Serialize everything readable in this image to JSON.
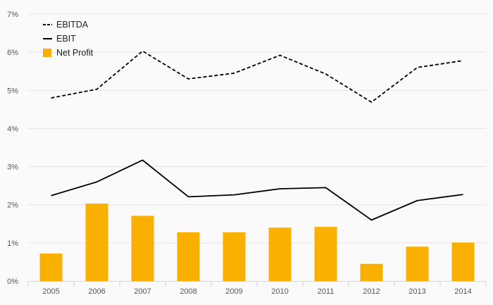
{
  "chart_data": {
    "type": "bar",
    "categories": [
      "2005",
      "2006",
      "2007",
      "2008",
      "2009",
      "2010",
      "2011",
      "2012",
      "2013",
      "2014"
    ],
    "series": [
      {
        "name": "EBITDA",
        "kind": "line",
        "style": "dashed",
        "color": "#000000",
        "values": [
          4.8,
          5.03,
          6.03,
          5.3,
          5.45,
          5.92,
          5.43,
          4.69,
          5.6,
          5.78
        ]
      },
      {
        "name": "EBIT",
        "kind": "line",
        "style": "solid",
        "color": "#000000",
        "values": [
          2.24,
          2.6,
          3.17,
          2.21,
          2.26,
          2.42,
          2.45,
          1.6,
          2.11,
          2.27
        ]
      },
      {
        "name": "Net Profit",
        "kind": "bar",
        "color": "#f9b000",
        "values": [
          0.72,
          2.03,
          1.71,
          1.28,
          1.28,
          1.4,
          1.42,
          0.45,
          0.9,
          1.01
        ]
      }
    ],
    "ylim": [
      0,
      7
    ],
    "yticks": [
      "0%",
      "1%",
      "2%",
      "3%",
      "4%",
      "5%",
      "6%",
      "7%"
    ],
    "grid": true,
    "legend": "top-left"
  }
}
